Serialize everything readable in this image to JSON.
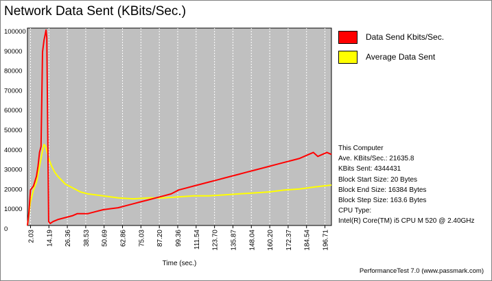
{
  "title": "Network Data Sent (KBits/Sec.)",
  "legend": [
    {
      "label": "Data Send Kbits/Sec.",
      "color": "#ff0000"
    },
    {
      "label": "Average Data Sent",
      "color": "#ffff00"
    }
  ],
  "info": {
    "line1": "This Computer",
    "line2": "Ave. KBits/Sec.: 21635.8",
    "line3": "KBits Sent: 4344431",
    "line4": "Block Start Size: 20 Bytes",
    "line5": "Block End Size: 16384 Bytes",
    "line6": "Block Step Size: 163.6 Bytes",
    "line7": "CPU Type:",
    "line8": "Intel(R) Core(TM) i5 CPU M 520 @ 2.40GHz"
  },
  "footer": "PerformanceTest 7.0 (www.passmark.com)",
  "chart_data": {
    "type": "line",
    "xlabel": "Time (sec.)",
    "ylabel": "",
    "xlim": [
      0,
      201
    ],
    "ylim": [
      0,
      100000
    ],
    "y_ticks": [
      "100000",
      "90000",
      "80000",
      "70000",
      "60000",
      "50000",
      "40000",
      "30000",
      "20000",
      "10000",
      "0"
    ],
    "x_ticks": [
      "2.03",
      "14.19",
      "26.36",
      "38.53",
      "50.69",
      "62.86",
      "75.03",
      "87.20",
      "99.36",
      "111.54",
      "123.70",
      "135.87",
      "148.04",
      "160.20",
      "172.37",
      "184.54",
      "196.71"
    ],
    "x_tick_values": [
      2.03,
      14.19,
      26.36,
      38.53,
      50.69,
      62.86,
      75.03,
      87.2,
      99.36,
      111.54,
      123.7,
      135.87,
      148.04,
      160.2,
      172.37,
      184.54,
      196.71
    ],
    "background": "#c0c0c0",
    "gridlines": "vertical-dashed",
    "series": [
      {
        "name": "Data Send Kbits/Sec.",
        "color": "#ff0000",
        "x": [
          0,
          1,
          2,
          4,
          6,
          7,
          8,
          9,
          10,
          11,
          11.8,
          12.3,
          12.8,
          14,
          15,
          17,
          20,
          25,
          30,
          33,
          40,
          45,
          50,
          55,
          60,
          65,
          70,
          75,
          80,
          85,
          90,
          95,
          100,
          105,
          110,
          115,
          120,
          125,
          130,
          135,
          140,
          145,
          150,
          155,
          160,
          165,
          170,
          175,
          180,
          183,
          186,
          189,
          192,
          195,
          198,
          201
        ],
        "y": [
          0,
          7000,
          18000,
          20000,
          25000,
          30000,
          37000,
          40000,
          88000,
          94000,
          97000,
          99000,
          95000,
          2000,
          1000,
          2000,
          3000,
          4000,
          5000,
          6000,
          6000,
          7000,
          8000,
          8500,
          9000,
          10000,
          11000,
          12000,
          13000,
          14000,
          15000,
          16000,
          18000,
          19000,
          20000,
          21000,
          22000,
          23000,
          24000,
          25000,
          26000,
          27000,
          28000,
          29000,
          30000,
          31000,
          32000,
          33000,
          34000,
          35000,
          36000,
          37000,
          35000,
          36000,
          37000,
          36000
        ]
      },
      {
        "name": "Average Data Sent",
        "color": "#ffff00",
        "x": [
          0,
          2,
          4,
          6,
          8,
          10,
          11,
          12,
          13,
          14,
          16,
          18,
          20,
          25,
          30,
          35,
          40,
          50,
          60,
          70,
          80,
          90,
          100,
          110,
          120,
          130,
          140,
          150,
          160,
          170,
          180,
          190,
          201
        ],
        "y": [
          0,
          12000,
          18000,
          22000,
          30000,
          38000,
          41000,
          40000,
          37000,
          34000,
          30000,
          27000,
          25000,
          21000,
          19000,
          17000,
          16000,
          15000,
          14000,
          13500,
          14000,
          14000,
          14500,
          15000,
          15000,
          15500,
          16000,
          16500,
          17000,
          18000,
          18500,
          19500,
          20500
        ]
      }
    ]
  }
}
